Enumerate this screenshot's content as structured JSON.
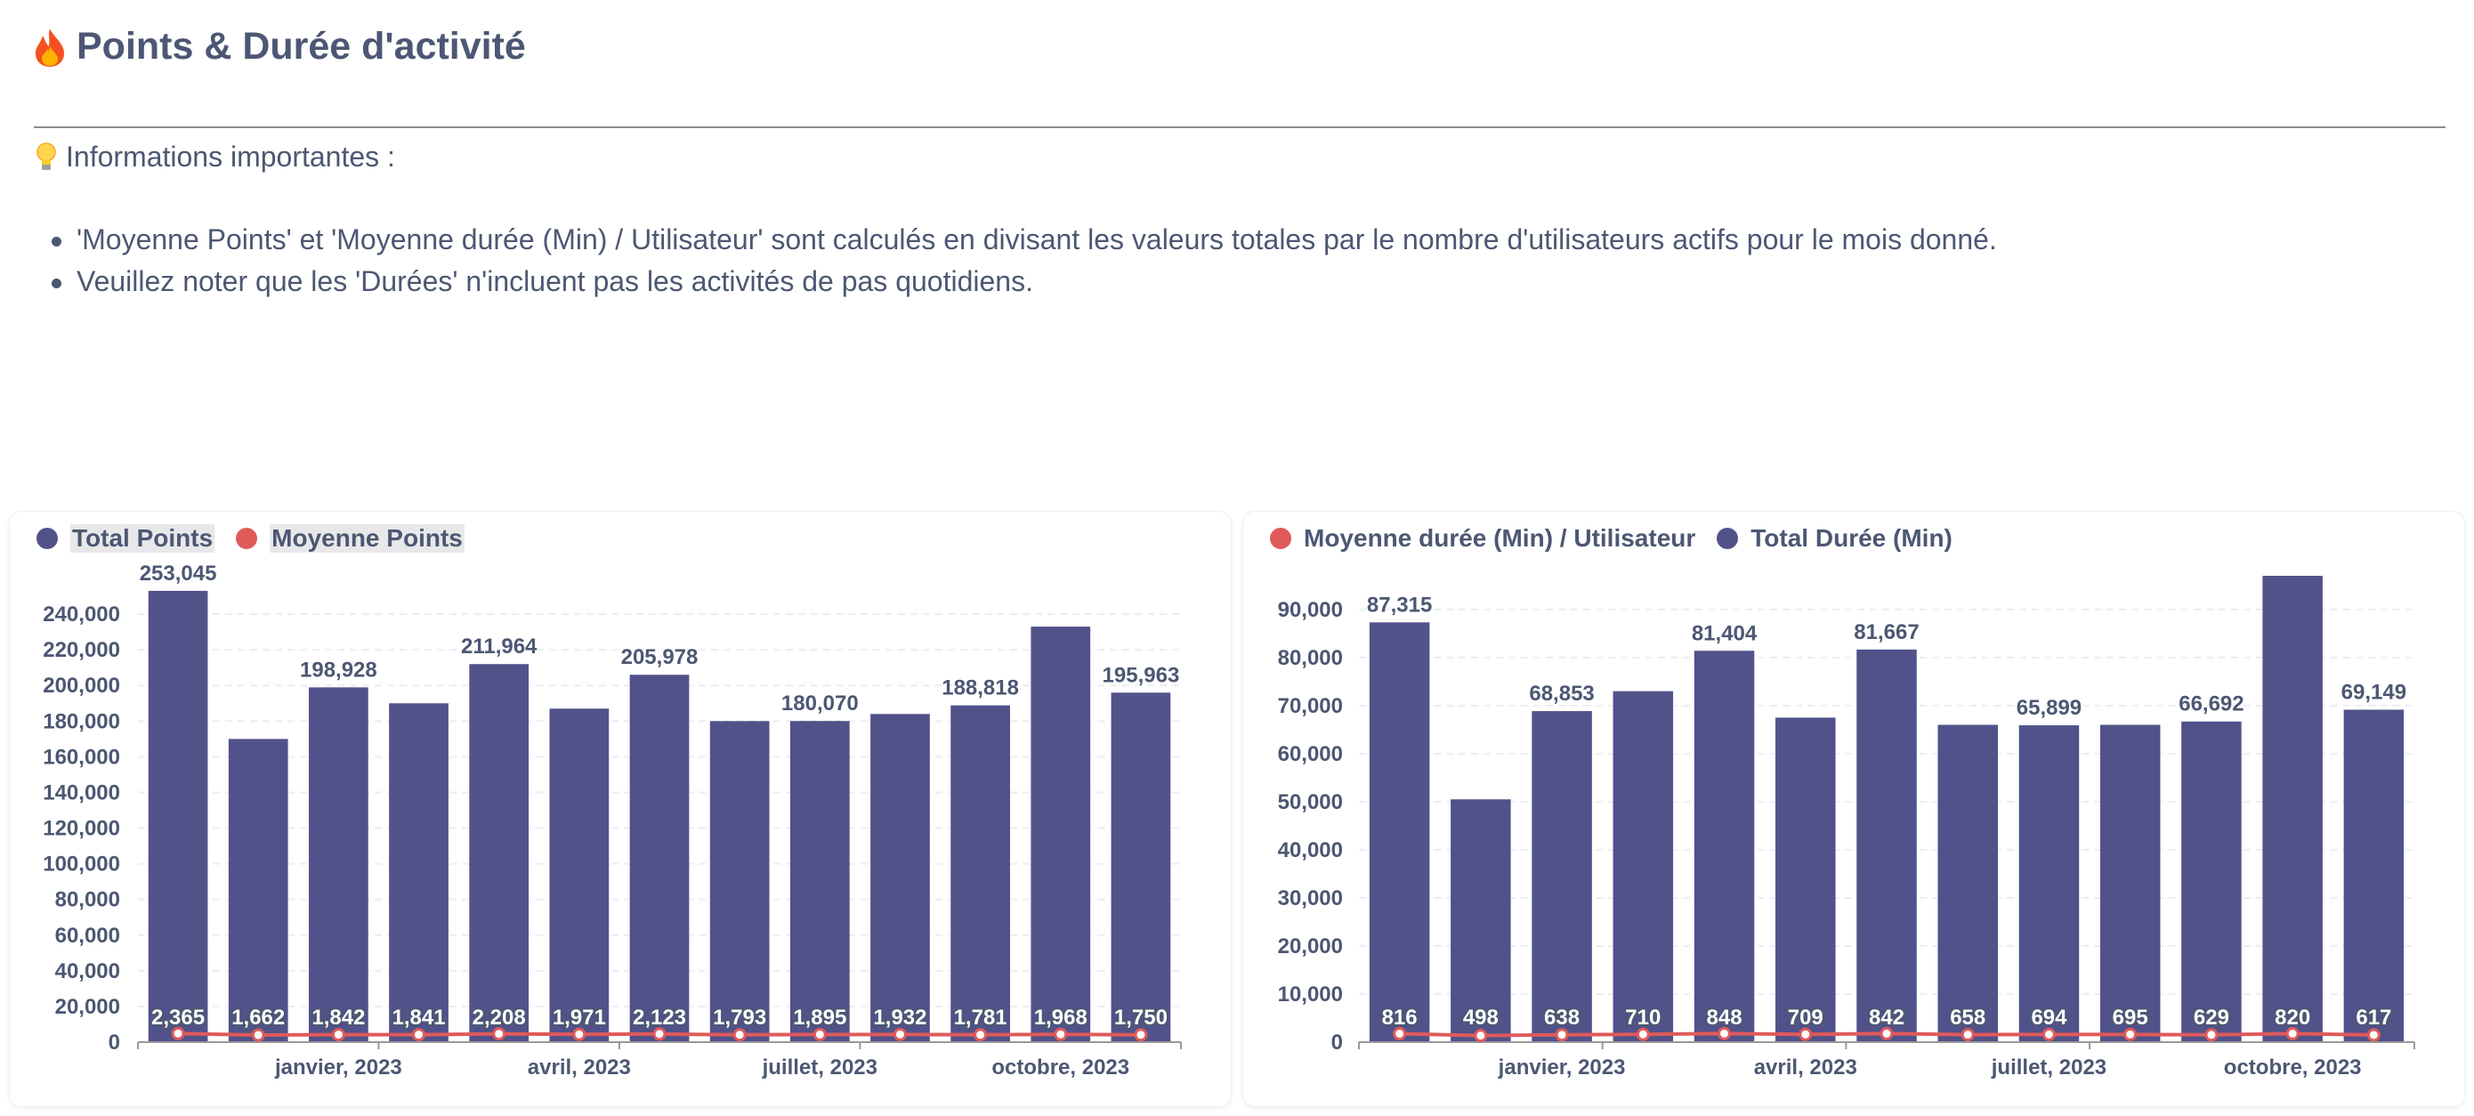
{
  "header": {
    "title": "Points & Durée d'activité",
    "icon": "fire-icon"
  },
  "info": {
    "heading": "Informations importantes :",
    "icon": "lightbulb-icon",
    "bullets": [
      "'Moyenne Points' et 'Moyenne durée (Min) / Utilisateur' sont calculés en divisant les valeurs totales par le nombre d'utilisateurs actifs pour le mois donné.",
      "Veuillez noter que les 'Durées' n'incluent pas les activités de pas quotidiens."
    ]
  },
  "colors": {
    "bar": "#51528a",
    "line": "#e05a5a",
    "text": "#4c5773",
    "grid": "#eceef2"
  },
  "chart_data": [
    {
      "type": "bar",
      "legend": [
        {
          "label": "Total Points",
          "color": "#51528a"
        },
        {
          "label": "Moyenne Points",
          "color": "#e05a5a"
        }
      ],
      "x_tick_labels": [
        "janvier, 2023",
        "avril, 2023",
        "juillet, 2023",
        "octobre, 2023"
      ],
      "series": [
        {
          "name": "Total Points",
          "type": "bar",
          "values": [
            253045,
            170000,
            198928,
            190000,
            211964,
            187000,
            205978,
            180000,
            180070,
            184000,
            188818,
            233000,
            195963
          ],
          "labels": [
            "253,045",
            "",
            "198,928",
            "",
            "211,964",
            "",
            "205,978",
            "",
            "180,070",
            "",
            "188,818",
            "",
            "195,963"
          ]
        },
        {
          "name": "Moyenne Points",
          "type": "line",
          "values": [
            2365,
            1662,
            1842,
            1841,
            2208,
            1971,
            2123,
            1793,
            1895,
            1932,
            1781,
            1968,
            1750
          ],
          "labels": [
            "2,365",
            "1,662",
            "1,842",
            "1,841",
            "2,208",
            "1,971",
            "2,123",
            "1,793",
            "1,895",
            "1,932",
            "1,781",
            "1,968",
            "1,750"
          ]
        }
      ],
      "y_ticks": [
        0,
        20000,
        40000,
        60000,
        80000,
        100000,
        120000,
        140000,
        160000,
        180000,
        200000,
        220000,
        240000
      ],
      "y_tick_labels": [
        "0",
        "20,000",
        "40,000",
        "60,000",
        "80,000",
        "100,000",
        "120,000",
        "140,000",
        "160,000",
        "180,000",
        "200,000",
        "220,000",
        "240,000"
      ],
      "ylim": [
        0,
        255000
      ]
    },
    {
      "type": "bar",
      "legend": [
        {
          "label": "Moyenne durée (Min) / Utilisateur",
          "color": "#e05a5a"
        },
        {
          "label": "Total Durée (Min)",
          "color": "#51528a"
        }
      ],
      "x_tick_labels": [
        "janvier, 2023",
        "avril, 2023",
        "juillet, 2023",
        "octobre, 2023"
      ],
      "series": [
        {
          "name": "Total Durée (Min)",
          "type": "bar",
          "values": [
            87315,
            50500,
            68853,
            73000,
            81404,
            67500,
            81667,
            66000,
            65899,
            66000,
            66692,
            97000,
            69149
          ],
          "labels": [
            "87,315",
            "",
            "68,853",
            "",
            "81,404",
            "",
            "81,667",
            "",
            "65,899",
            "",
            "66,692",
            "",
            "69,149"
          ]
        },
        {
          "name": "Moyenne durée (Min) / Utilisateur",
          "type": "line",
          "values": [
            816,
            498,
            638,
            710,
            848,
            709,
            842,
            658,
            694,
            695,
            629,
            820,
            617
          ],
          "labels": [
            "816",
            "498",
            "638",
            "710",
            "848",
            "709",
            "842",
            "658",
            "694",
            "695",
            "629",
            "820",
            "617"
          ]
        }
      ],
      "y_ticks": [
        0,
        10000,
        20000,
        30000,
        40000,
        50000,
        60000,
        70000,
        80000,
        90000
      ],
      "y_tick_labels": [
        "0",
        "10,000",
        "20,000",
        "30,000",
        "40,000",
        "50,000",
        "60,000",
        "70,000",
        "80,000",
        "90,000"
      ],
      "ylim": [
        0,
        97000
      ]
    }
  ]
}
